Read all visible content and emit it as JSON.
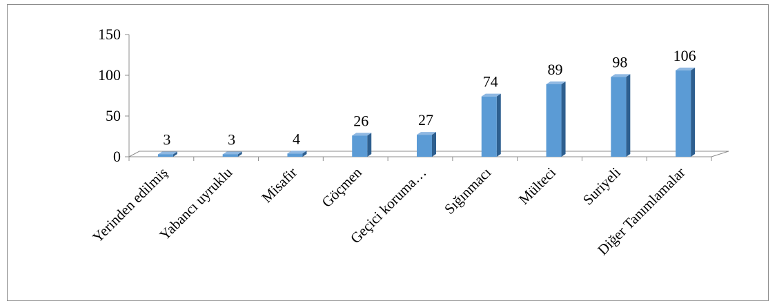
{
  "chart_data": {
    "type": "bar",
    "title": "",
    "xlabel": "",
    "ylabel": "",
    "categories": [
      "Yerinden edilmiş",
      "Yabancı uyruklu",
      "Misafir",
      "Göçmen",
      "Geçici koruma…",
      "Sığınmacı",
      "Mülteci",
      "Suriyeli",
      "Diğer Tanımlamalar"
    ],
    "values": [
      3,
      3,
      4,
      26,
      27,
      74,
      89,
      98,
      106
    ],
    "ylim": [
      0,
      150
    ],
    "yticks": [
      0,
      50,
      100,
      150
    ],
    "grid": false,
    "legend": "none",
    "style": "3d-column",
    "colors": {
      "bar_front": "#5b9bd5",
      "bar_side": "#2e5f8f",
      "bar_top": "#8fb8e2",
      "axis": "#8c8c8c"
    }
  }
}
